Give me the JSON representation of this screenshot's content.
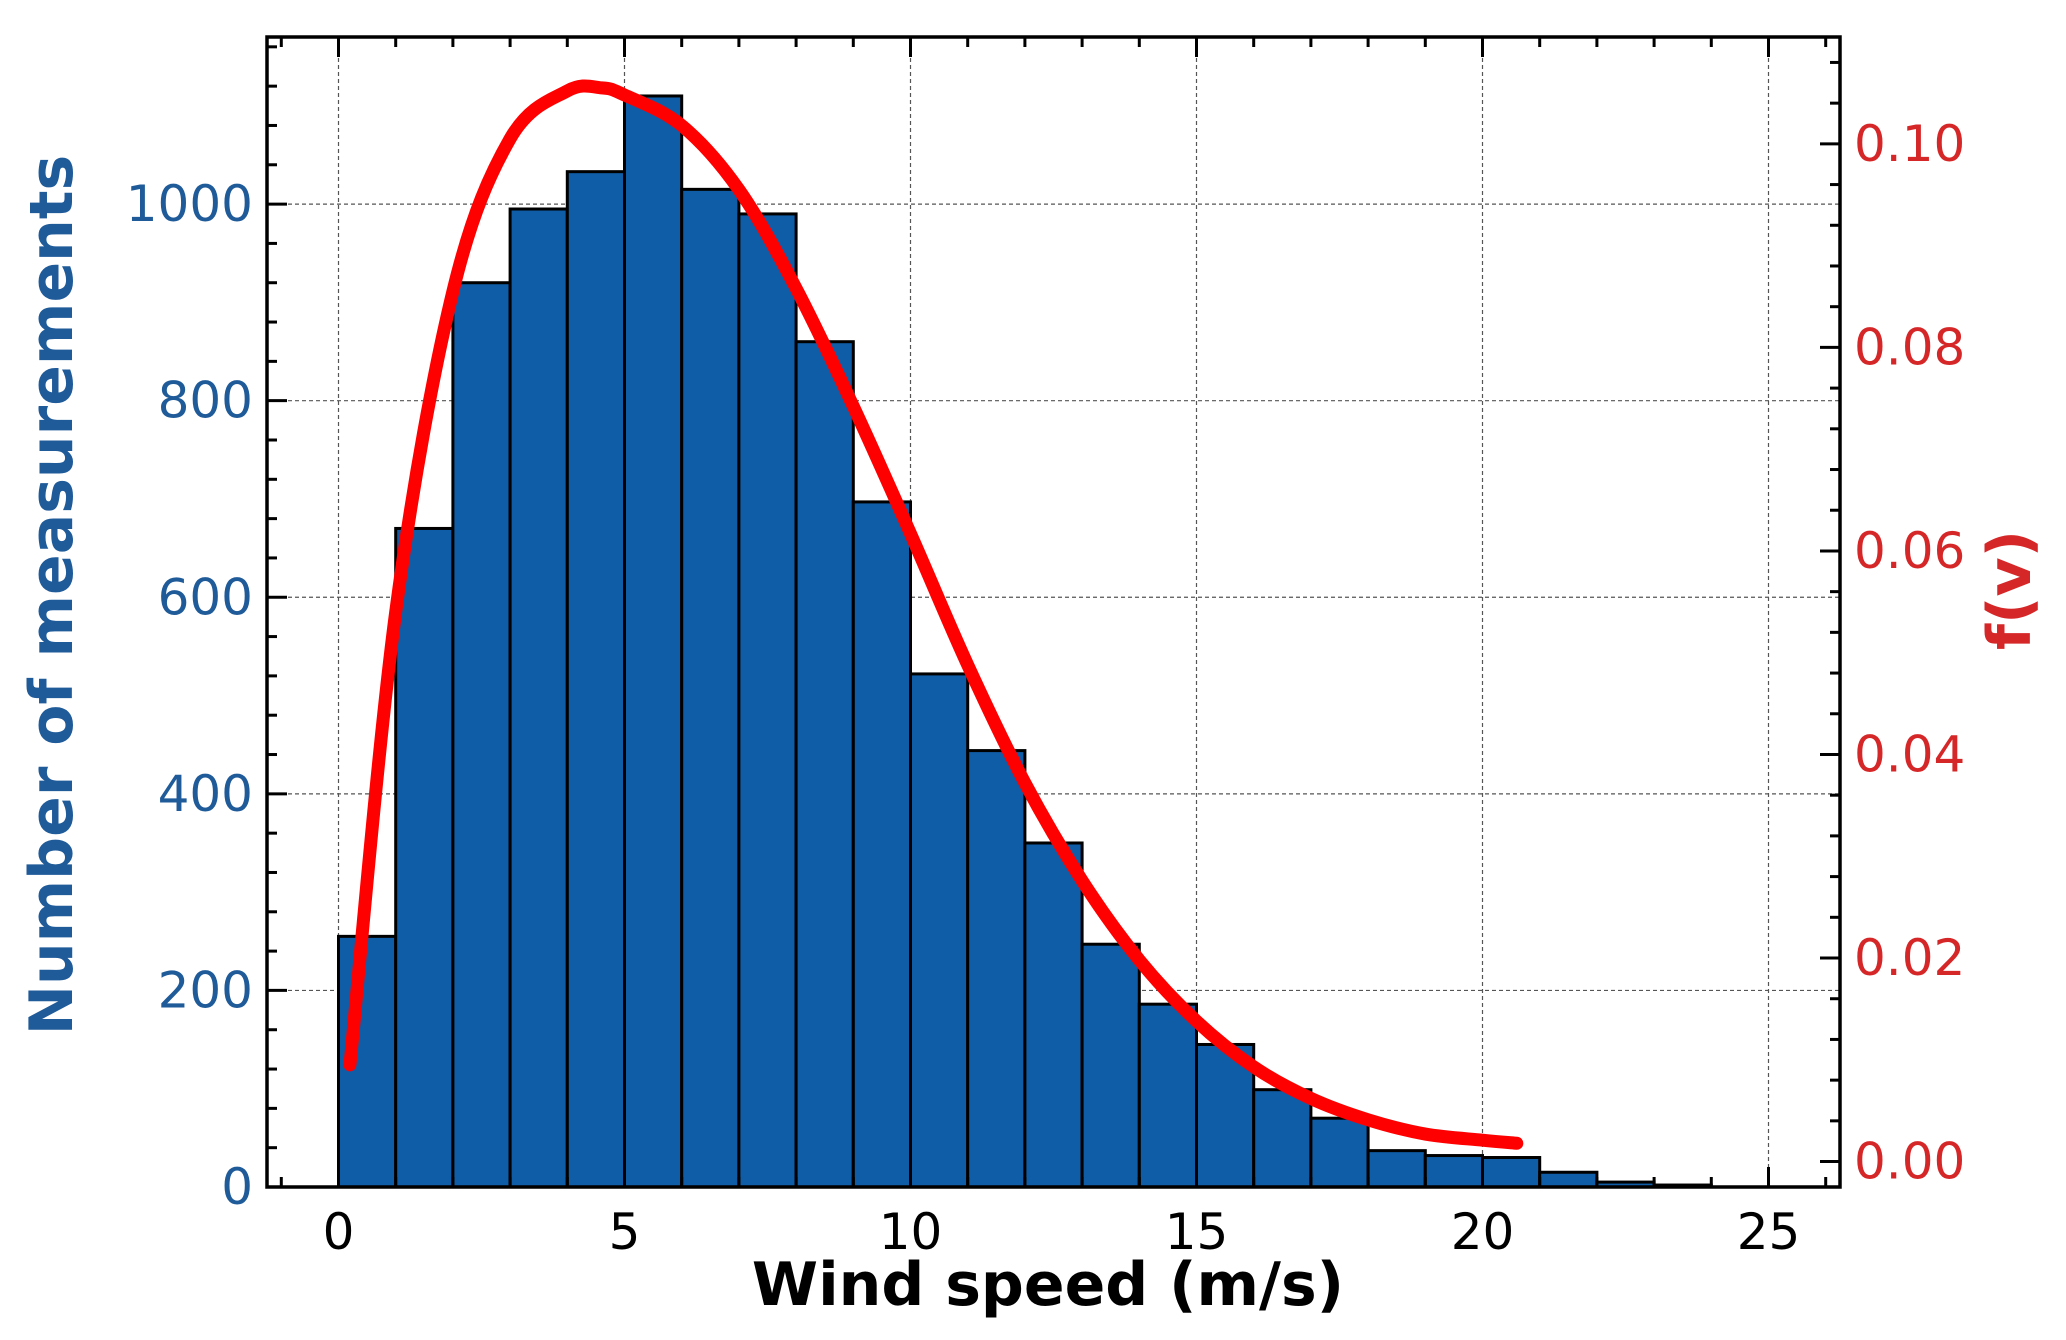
{
  "chart_data": {
    "type": "bar",
    "title": "",
    "xlabel": "Wind speed (m/s)",
    "ylabel_left": "Number of measurements",
    "ylabel_right": "f(v)",
    "xlim": [
      -1.25,
      26.25
    ],
    "ylim_left": [
      0,
      1170
    ],
    "ylim_right": [
      -0.0025,
      0.1105
    ],
    "grid": true,
    "x_ticks": [
      "0",
      "5",
      "10",
      "15",
      "20",
      "25"
    ],
    "y_left_ticks": [
      "0",
      "200",
      "400",
      "600",
      "800",
      "1000"
    ],
    "y_right_ticks": [
      "0.00",
      "0.02",
      "0.04",
      "0.06",
      "0.08",
      "0.10"
    ],
    "bin_width": 1,
    "bins": {
      "x_start": [
        0,
        1,
        2,
        3,
        4,
        5,
        6,
        7,
        8,
        9,
        10,
        11,
        12,
        13,
        14,
        15,
        16,
        17,
        18,
        19,
        20,
        21,
        22,
        23,
        24
      ],
      "counts": [
        255,
        670,
        920,
        995,
        1033,
        1110,
        1015,
        990,
        860,
        697,
        522,
        444,
        350,
        247,
        186,
        145,
        99,
        70,
        37,
        32,
        30,
        15,
        5,
        2,
        0
      ]
    },
    "series": [
      {
        "values_axis": "left",
        "type": "bar",
        "color": "#0f5da6"
      },
      {
        "values_axis": "right",
        "type": "line",
        "color": "#ff0000",
        "x": [
          0.2,
          1,
          2,
          3,
          4,
          4.6,
          5,
          6,
          7,
          8,
          9,
          10,
          11,
          12,
          13,
          14,
          15,
          16,
          17,
          18,
          19,
          20,
          20.6
        ],
        "values": [
          0.0095,
          0.054,
          0.0855,
          0.1005,
          0.1052,
          0.1055,
          0.1048,
          0.1018,
          0.0955,
          0.0858,
          0.0742,
          0.0617,
          0.0488,
          0.0372,
          0.0276,
          0.0198,
          0.0138,
          0.0093,
          0.0062,
          0.0041,
          0.0027,
          0.0021,
          0.0018
        ]
      }
    ]
  },
  "colors": {
    "left_axis": "#1f5a99",
    "right_axis": "#d62728",
    "bar_fill": "#0f5da6",
    "curve": "#ff0000"
  }
}
